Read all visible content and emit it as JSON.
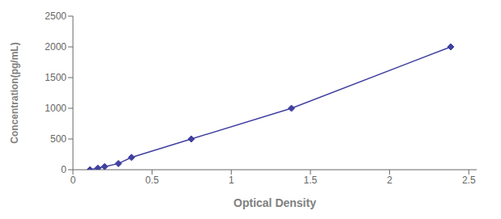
{
  "chart_data": {
    "type": "line",
    "x": [
      0.108,
      0.157,
      0.2,
      0.287,
      0.37,
      0.747,
      1.38,
      2.386
    ],
    "values": [
      0,
      25,
      50,
      100,
      200,
      500,
      1000,
      2000
    ],
    "color": "#4040a0",
    "marker": "diamond",
    "xlabel": "Optical Density",
    "ylabel": "Concentration(pg/mL)",
    "xlim": [
      0.0,
      2.55
    ],
    "ylim": [
      0,
      2500
    ],
    "xticks": [
      0,
      0.5,
      1,
      1.5,
      2,
      2.5
    ],
    "yticks": [
      0,
      500,
      1000,
      1500,
      2000,
      2500
    ],
    "grid": false
  }
}
